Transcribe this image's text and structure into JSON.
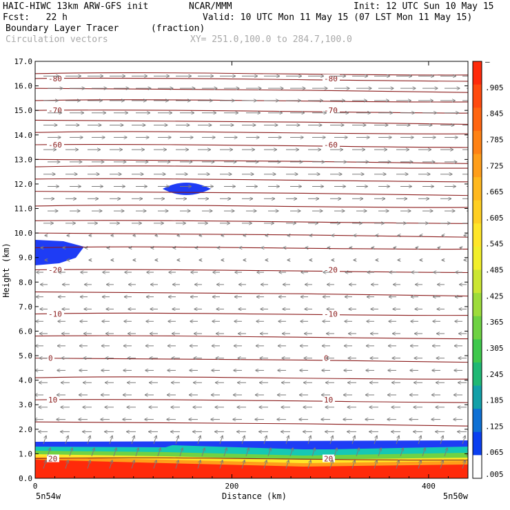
{
  "header": {
    "model": "HAIC-HIWC 13km ARW-GFS init",
    "org": "NCAR/MMM",
    "init": "Init: 12 UTC Sun 10 May 15",
    "fcst": "Fcst:   22 h",
    "valid": "Valid: 10 UTC Mon 11 May 15 (07 LST Mon 11 May 15)",
    "field": "Boundary Layer Tracer",
    "units": "(fraction)",
    "vectors": "Circulation vectors",
    "xy": "XY= 251.0,100.0 to 284.7,100.0"
  },
  "chart_data": {
    "type": "heatmap",
    "xlabel": "Distance (km)",
    "ylabel": "Height (km)",
    "xlim": [
      0,
      440
    ],
    "ylim": [
      0,
      17
    ],
    "x_ticks": [
      0,
      200,
      400
    ],
    "y_ticks": [
      "0.0",
      "1.0",
      "2.0",
      "3.0",
      "4.0",
      "5.0",
      "6.0",
      "7.0",
      "8.0",
      "9.0",
      "10.0",
      "11.0",
      "12.0",
      "13.0",
      "14.0",
      "15.0",
      "16.0",
      "17.0"
    ],
    "x_end_labels": {
      "left": "5n54w",
      "right": "5n50w"
    },
    "colorbar": {
      "labels": [
        "–",
        ".905",
        ".845",
        ".785",
        ".725",
        ".665",
        ".605",
        ".545",
        ".485",
        ".425",
        ".365",
        ".305",
        ".245",
        ".185",
        ".125",
        ".065",
        ".005"
      ],
      "colors": [
        "#ff2a0a",
        "#ff4a0e",
        "#ff6510",
        "#ff8214",
        "#ff9e1a",
        "#ffb81e",
        "#ffcf22",
        "#ffe628",
        "#f2ef2a",
        "#cbe632",
        "#9ddc3a",
        "#6ed242",
        "#3ec84c",
        "#1fb874",
        "#12a0a8",
        "#0e70d4",
        "#0a3ff0",
        "#ffffff"
      ]
    },
    "temperature_contours": [
      {
        "label": "-80",
        "height_km": 16.3
      },
      {
        "label": "-70",
        "height_km": 15.0
      },
      {
        "label": "-60",
        "height_km": 13.6
      },
      {
        "label": "-20",
        "height_km": 8.5
      },
      {
        "label": "-10",
        "height_km": 6.7
      },
      {
        "label": "0",
        "height_km": 4.9
      },
      {
        "label": "10",
        "height_km": 3.2
      },
      {
        "label": "20",
        "height_km": 0.8
      }
    ]
  }
}
